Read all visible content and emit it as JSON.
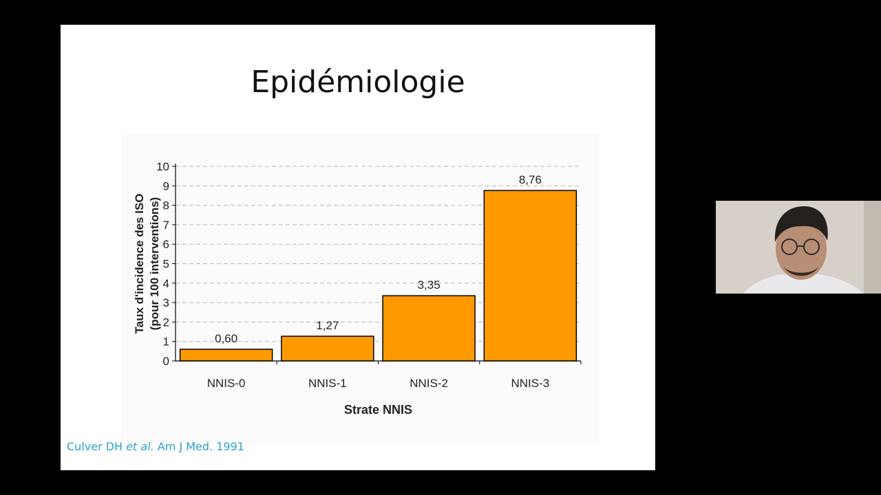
{
  "slide": {
    "title": "Epidémiologie",
    "citation": {
      "authors": "Culver DH",
      "etal": "et al.",
      "journal": "Am J Med. 1991"
    }
  },
  "chart_data": {
    "type": "bar",
    "categories": [
      "NNIS-0",
      "NNIS-1",
      "NNIS-2",
      "NNIS-3"
    ],
    "values": [
      0.6,
      1.27,
      3.35,
      8.76
    ],
    "value_labels": [
      "0,60",
      "1,27",
      "3,35",
      "8,76"
    ],
    "ylabel_line1": "Taux d'incidence des ISO",
    "ylabel_line2": "(pour 100 interventions)",
    "xlabel": "Strate NNIS",
    "ylim": [
      0,
      10
    ],
    "yticks": [
      "0",
      "1",
      "2",
      "3",
      "4",
      "5",
      "6",
      "7",
      "8",
      "9",
      "10"
    ],
    "grid": true,
    "bar_color": "#FF9900",
    "bar_edge_color": "#000000"
  },
  "colors": {
    "background": "#000000",
    "slide": "#ffffff",
    "citation": "#2c9fc8"
  },
  "webcam": {
    "icon": "presenter-video-feed"
  }
}
